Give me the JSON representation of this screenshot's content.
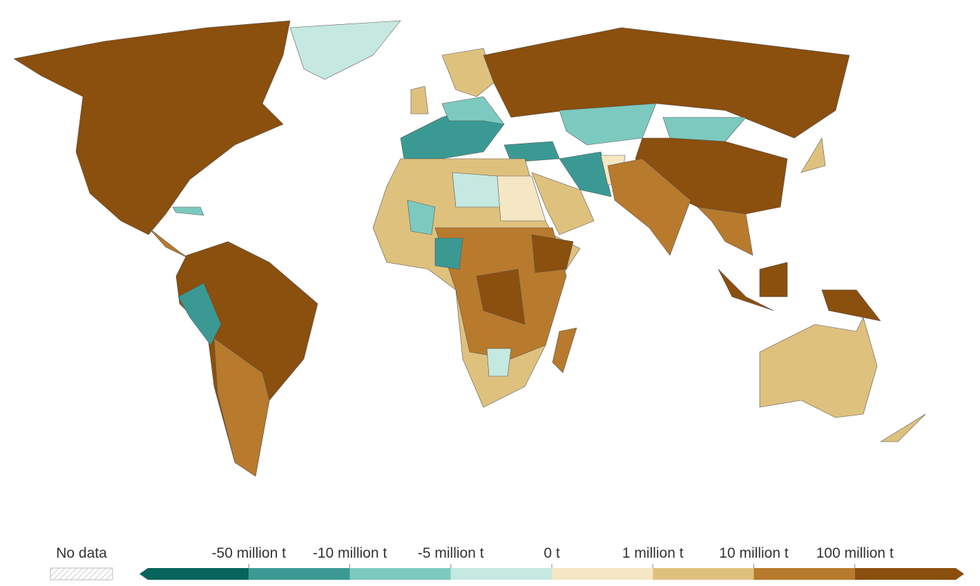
{
  "legend": {
    "no_data": "No data",
    "labels": [
      "-50 million t",
      "-10 million t",
      "-5 million t",
      "0 t",
      "1 million t",
      "10 million t",
      "100 million t"
    ],
    "colors": [
      "#06645c",
      "#3a9a93",
      "#7ccabf",
      "#c5e8e0",
      "#f5e7c4",
      "#dfc17e",
      "#b87a2d",
      "#8b4f0e"
    ]
  }
}
